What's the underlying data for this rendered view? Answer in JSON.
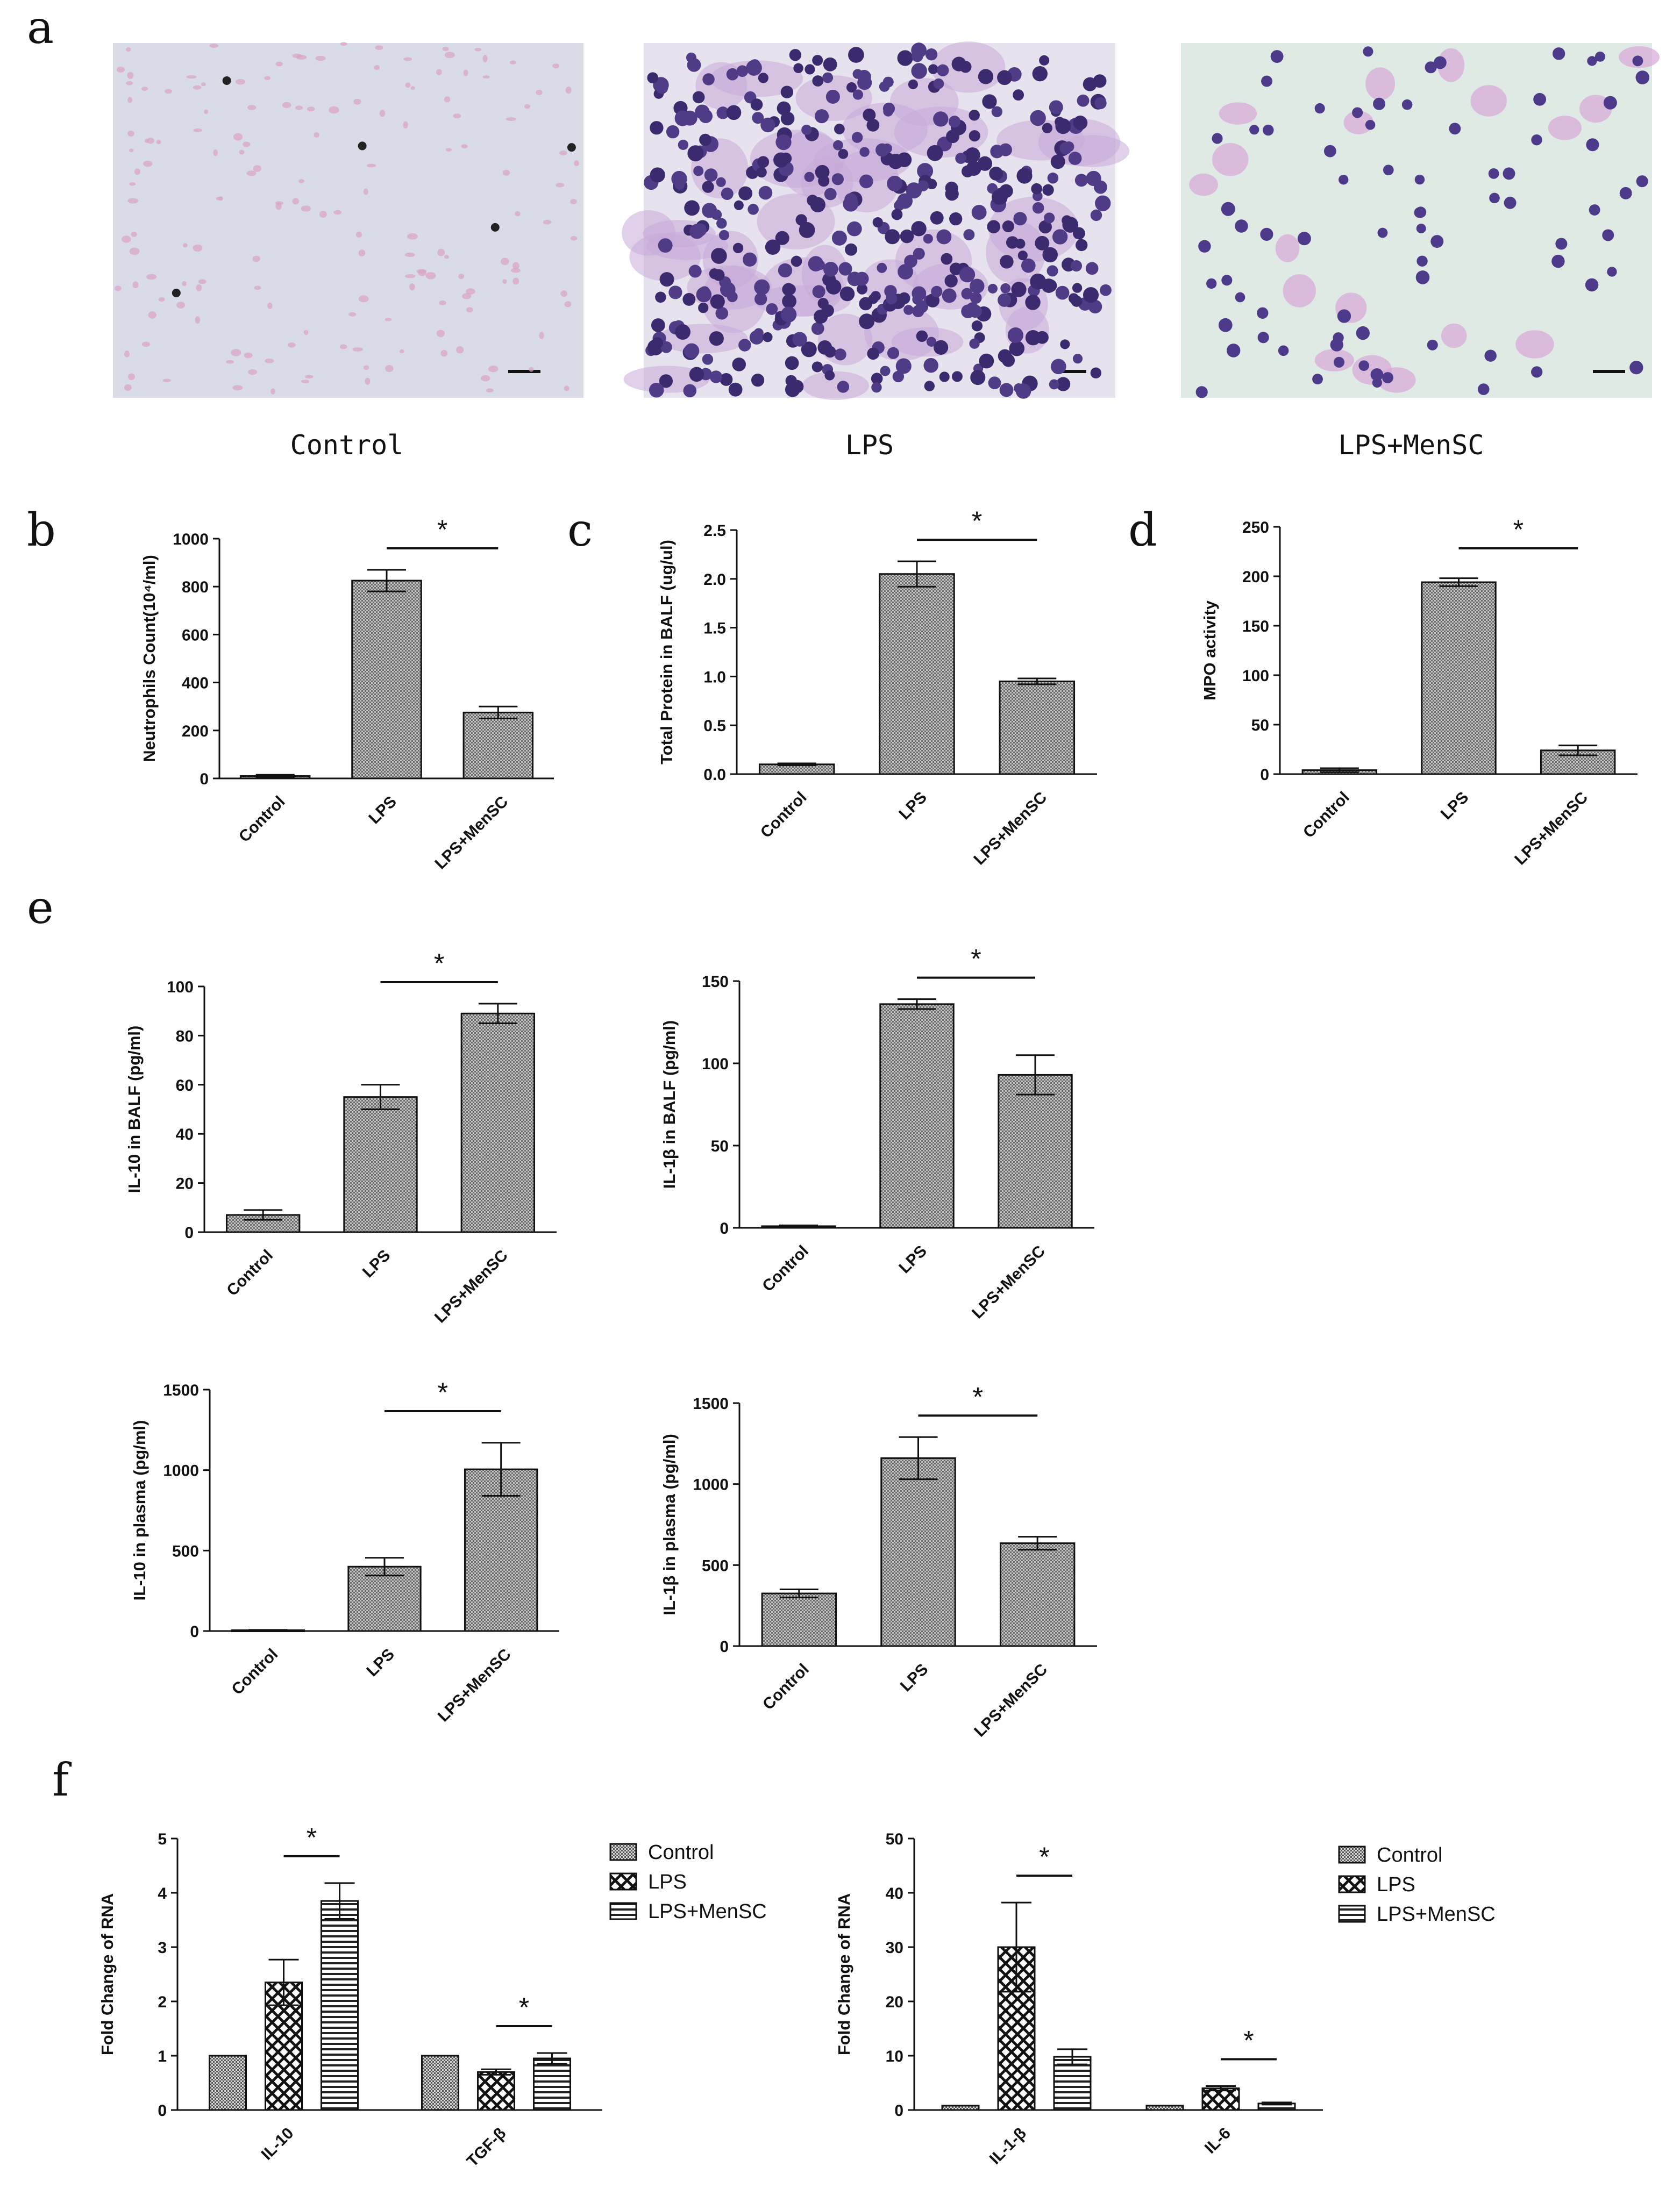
{
  "panel_letters": [
    "a",
    "b",
    "c",
    "d",
    "e",
    "f"
  ],
  "micrographs": [
    {
      "caption": "Control",
      "bg": "#d9dbe6",
      "cells": "sparse-pink"
    },
    {
      "caption": "LPS",
      "bg": "#e6e2ee",
      "cells": "dense-purple"
    },
    {
      "caption": "LPS+MenSC",
      "bg": "#dfeae4",
      "cells": "scattered-purple"
    }
  ],
  "colors": {
    "bar_fill": "#9a9a9a",
    "bar_stroke": "#111111",
    "axis": "#111111"
  },
  "chart_data": [
    {
      "id": "b",
      "type": "bar",
      "categories": [
        "Control",
        "LPS",
        "LPS+MenSC"
      ],
      "values": [
        10,
        825,
        275
      ],
      "errors": [
        5,
        45,
        25
      ],
      "ylabel_html": "Neutrophils Count(10⁴/ml)",
      "ylim": [
        0,
        1000
      ],
      "yticks": [
        "0",
        "200",
        "400",
        "600",
        "800",
        "1000"
      ],
      "significance": [
        {
          "from": 1,
          "to": 2,
          "label": "*"
        }
      ]
    },
    {
      "id": "c",
      "type": "bar",
      "categories": [
        "Control",
        "LPS",
        "LPS+MenSC"
      ],
      "values": [
        0.1,
        2.05,
        0.95
      ],
      "errors": [
        0.01,
        0.13,
        0.03
      ],
      "ylabel_html": "Total Protein in BALF (ug/ul)",
      "ylim": [
        0,
        2.5
      ],
      "yticks": [
        "0.0",
        "0.5",
        "1.0",
        "1.5",
        "2.0",
        "2.5"
      ],
      "significance": [
        {
          "from": 1,
          "to": 2,
          "label": "*"
        }
      ]
    },
    {
      "id": "d",
      "type": "bar",
      "categories": [
        "Control",
        "LPS",
        "LPS+MenSC"
      ],
      "values": [
        4,
        194,
        24
      ],
      "errors": [
        2,
        4,
        5
      ],
      "ylabel_html": "MPO activity",
      "ylim": [
        0,
        250
      ],
      "yticks": [
        "0",
        "50",
        "100",
        "150",
        "200",
        "250"
      ],
      "significance": [
        {
          "from": 1,
          "to": 2,
          "label": "*"
        }
      ]
    },
    {
      "id": "e1",
      "type": "bar",
      "categories": [
        "Control",
        "LPS",
        "LPS+MenSC"
      ],
      "values": [
        7,
        55,
        89
      ],
      "errors": [
        2,
        5,
        4
      ],
      "ylabel_html": "IL-10 in BALF (pg/ml)",
      "ylim": [
        0,
        100
      ],
      "yticks": [
        "0",
        "20",
        "40",
        "60",
        "80",
        "100"
      ],
      "significance": [
        {
          "from": 1,
          "to": 2,
          "label": "*"
        }
      ]
    },
    {
      "id": "e2",
      "type": "bar",
      "categories": [
        "Control",
        "LPS",
        "LPS+MenSC"
      ],
      "values": [
        1,
        136,
        93
      ],
      "errors": [
        0.5,
        3,
        12
      ],
      "ylabel_html": "IL-1β in BALF (pg/ml)",
      "ylim": [
        0,
        150
      ],
      "yticks": [
        "0",
        "50",
        "100",
        "150"
      ],
      "significance": [
        {
          "from": 1,
          "to": 2,
          "label": "*"
        }
      ]
    },
    {
      "id": "e3",
      "type": "bar",
      "categories": [
        "Control",
        "LPS",
        "LPS+MenSC"
      ],
      "values": [
        5,
        400,
        1005
      ],
      "errors": [
        2,
        55,
        165
      ],
      "ylabel_html": "IL-10 in plasma (pg/ml)",
      "ylim": [
        0,
        1500
      ],
      "yticks": [
        "0",
        "500",
        "1000",
        "1500"
      ],
      "significance": [
        {
          "from": 1,
          "to": 2,
          "label": "*"
        }
      ]
    },
    {
      "id": "e4",
      "type": "bar",
      "categories": [
        "Control",
        "LPS",
        "LPS+MenSC"
      ],
      "values": [
        325,
        1160,
        635
      ],
      "errors": [
        25,
        130,
        40
      ],
      "ylabel_html": "IL-1β in plasma (pg/ml)",
      "ylim": [
        0,
        1500
      ],
      "yticks": [
        "0",
        "500",
        "1000",
        "1500"
      ],
      "significance": [
        {
          "from": 1,
          "to": 2,
          "label": "*"
        }
      ]
    },
    {
      "id": "f1",
      "type": "grouped_bar",
      "categories": [
        "IL-10",
        "TGF-β"
      ],
      "series": [
        {
          "name": "Control",
          "values": [
            1.0,
            1.0
          ],
          "errors": [
            0,
            0
          ],
          "pattern": "check"
        },
        {
          "name": "LPS",
          "values": [
            2.35,
            0.7
          ],
          "errors": [
            0.42,
            0.05
          ],
          "pattern": "xcheck"
        },
        {
          "name": "LPS+MenSC",
          "values": [
            3.85,
            0.95
          ],
          "errors": [
            0.33,
            0.1
          ],
          "pattern": "hlines"
        }
      ],
      "ylabel_html": "Fold Change of RNA",
      "ylim": [
        0,
        5
      ],
      "yticks": [
        "0",
        "1",
        "2",
        "3",
        "4",
        "5"
      ],
      "significance": [
        {
          "group": 0,
          "from": 1,
          "to": 2,
          "label": "*"
        },
        {
          "group": 1,
          "from": 1,
          "to": 2,
          "label": "*"
        }
      ],
      "legend": [
        "Control",
        "LPS",
        "LPS+MenSC"
      ]
    },
    {
      "id": "f2",
      "type": "grouped_bar",
      "categories": [
        "IL-1-β",
        "IL-6"
      ],
      "series": [
        {
          "name": "Control",
          "values": [
            0.8,
            0.8
          ],
          "errors": [
            0,
            0
          ],
          "pattern": "check"
        },
        {
          "name": "LPS",
          "values": [
            30.0,
            4.0
          ],
          "errors": [
            8.2,
            0.4
          ],
          "pattern": "xcheck"
        },
        {
          "name": "LPS+MenSC",
          "values": [
            9.8,
            1.2
          ],
          "errors": [
            1.4,
            0.2
          ],
          "pattern": "hlines"
        }
      ],
      "ylabel_html": "Fold Change of RNA",
      "ylim": [
        0,
        50
      ],
      "yticks": [
        "0",
        "10",
        "20",
        "30",
        "40",
        "50"
      ],
      "significance": [
        {
          "group": 0,
          "from": 1,
          "to": 2,
          "label": "*"
        },
        {
          "group": 1,
          "from": 1,
          "to": 2,
          "label": "*"
        }
      ],
      "legend": [
        "Control",
        "LPS",
        "LPS+MenSC"
      ]
    }
  ]
}
